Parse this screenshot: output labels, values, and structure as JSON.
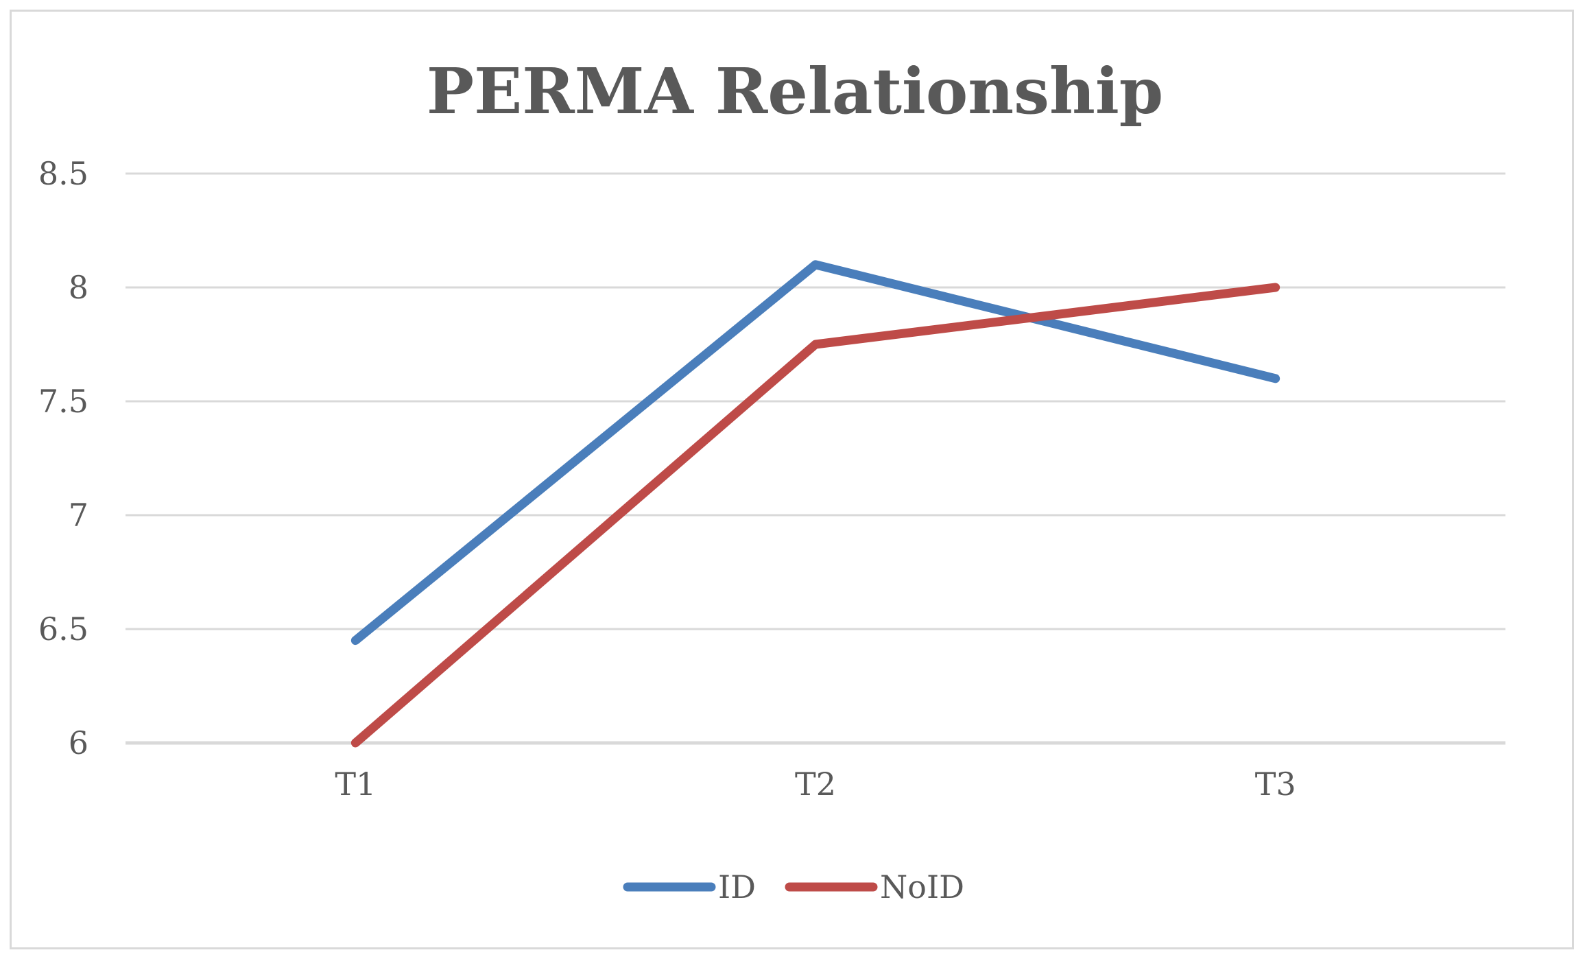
{
  "chart_data": {
    "type": "line",
    "title": "PERMA Relationship",
    "categories": [
      "T1",
      "T2",
      "T3"
    ],
    "series": [
      {
        "name": "ID",
        "color": "#4a7ebb",
        "values": [
          6.45,
          8.1,
          7.6
        ]
      },
      {
        "name": "NoID",
        "color": "#be4b48",
        "values": [
          6.0,
          7.75,
          8.0
        ]
      }
    ],
    "xlabel": "",
    "ylabel": "",
    "ylim": [
      6,
      8.5
    ],
    "yticks": [
      6,
      6.5,
      7,
      7.5,
      8,
      8.5
    ],
    "ytick_labels": [
      "6",
      "6.5",
      "7",
      "7.5",
      "8",
      "8.5"
    ],
    "grid": true,
    "legend_position": "bottom"
  }
}
